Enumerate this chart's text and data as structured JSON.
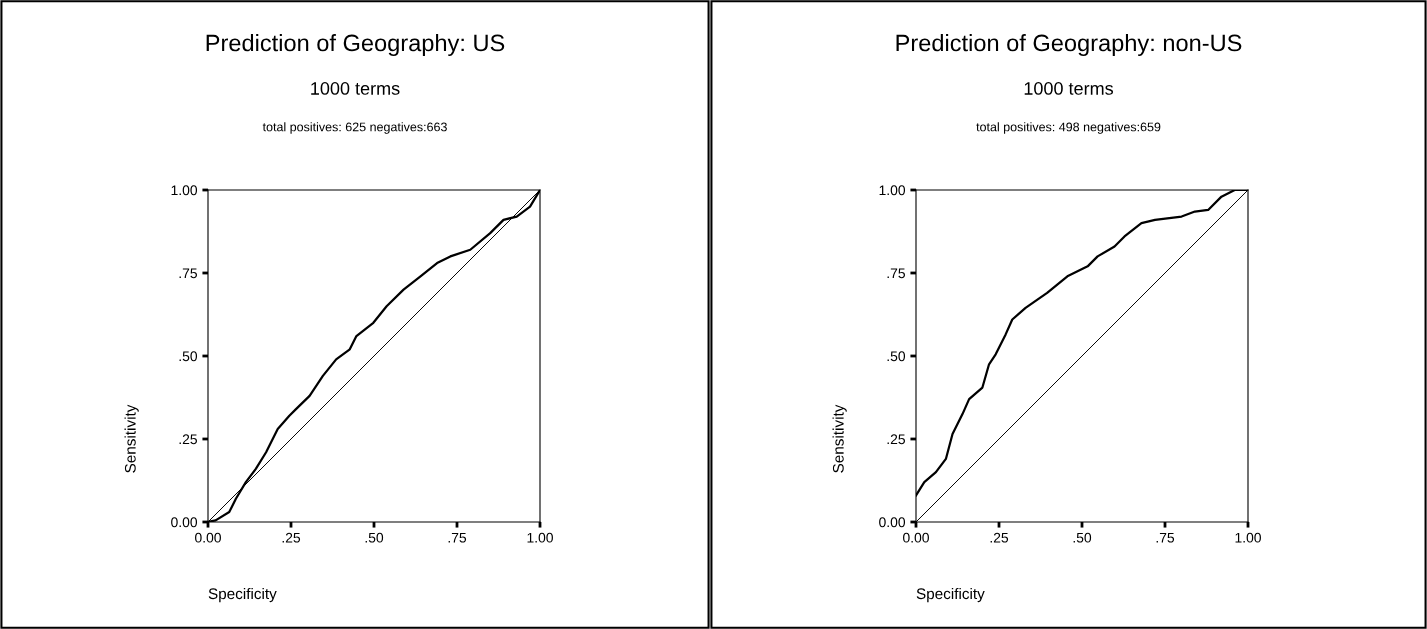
{
  "chart_data": [
    {
      "type": "line",
      "title": "Prediction of Geography: US",
      "subtitle": "1000 terms",
      "annotations": [
        "total positives: 625 negatives:663"
      ],
      "xlabel": "Specificity",
      "ylabel": "Sensitivity",
      "xlim": [
        0,
        1
      ],
      "ylim": [
        0,
        1
      ],
      "xticks": [
        {
          "value": 0,
          "label": "0.00"
        },
        {
          "value": 0.25,
          "label": ".25"
        },
        {
          "value": 0.5,
          "label": ".50"
        },
        {
          "value": 0.75,
          "label": ".75"
        },
        {
          "value": 1,
          "label": "1.00"
        }
      ],
      "yticks": [
        {
          "value": 0,
          "label": "0.00"
        },
        {
          "value": 0.25,
          "label": ".25"
        },
        {
          "value": 0.5,
          "label": ".50"
        },
        {
          "value": 0.75,
          "label": ".75"
        },
        {
          "value": 1,
          "label": "1.00"
        }
      ],
      "grid": false,
      "line_style": "solid",
      "series": [
        {
          "color": "#000000",
          "x": [
            0,
            0.023,
            0.064,
            0.084,
            0.114,
            0.144,
            0.175,
            0.21,
            0.245,
            0.265,
            0.306,
            0.346,
            0.386,
            0.427,
            0.447,
            0.498,
            0.538,
            0.589,
            0.64,
            0.69,
            0.73,
            0.79,
            0.85,
            0.89,
            0.93,
            0.97,
            1
          ],
          "values": [
            0,
            0.005,
            0.03,
            0.07,
            0.12,
            0.16,
            0.21,
            0.28,
            0.32,
            0.34,
            0.38,
            0.44,
            0.49,
            0.52,
            0.56,
            0.6,
            0.65,
            0.7,
            0.74,
            0.78,
            0.8,
            0.82,
            0.87,
            0.91,
            0.92,
            0.95,
            1
          ]
        },
        {
          "color": "#000000",
          "x": [
            0,
            1
          ],
          "values": [
            0,
            1
          ]
        }
      ]
    },
    {
      "type": "line",
      "title": "Prediction of Geography: non-US",
      "subtitle": "1000 terms",
      "annotations": [
        "total positives: 498 negatives:659"
      ],
      "xlabel": "Specificity",
      "ylabel": "Sensitivity",
      "xlim": [
        0,
        1
      ],
      "ylim": [
        0,
        1
      ],
      "xticks": [
        {
          "value": 0,
          "label": "0.00"
        },
        {
          "value": 0.25,
          "label": ".25"
        },
        {
          "value": 0.5,
          "label": ".50"
        },
        {
          "value": 0.75,
          "label": ".75"
        },
        {
          "value": 1,
          "label": "1.00"
        }
      ],
      "yticks": [
        {
          "value": 0,
          "label": "0.00"
        },
        {
          "value": 0.25,
          "label": ".25"
        },
        {
          "value": 0.5,
          "label": ".50"
        },
        {
          "value": 0.75,
          "label": ".75"
        },
        {
          "value": 1,
          "label": "1.00"
        }
      ],
      "grid": false,
      "line_style": "solid",
      "series": [
        {
          "color": "#000000",
          "x": [
            0,
            0.025,
            0.06,
            0.09,
            0.11,
            0.14,
            0.16,
            0.2,
            0.22,
            0.24,
            0.27,
            0.29,
            0.33,
            0.395,
            0.456,
            0.517,
            0.547,
            0.598,
            0.628,
            0.679,
            0.72,
            0.8,
            0.84,
            0.88,
            0.92,
            0.96,
            1
          ],
          "values": [
            0.08,
            0.12,
            0.15,
            0.19,
            0.265,
            0.325,
            0.37,
            0.405,
            0.475,
            0.505,
            0.565,
            0.61,
            0.645,
            0.69,
            0.74,
            0.77,
            0.8,
            0.83,
            0.86,
            0.9,
            0.91,
            0.92,
            0.935,
            0.94,
            0.98,
            1,
            1
          ]
        },
        {
          "color": "#000000",
          "x": [
            0,
            1
          ],
          "values": [
            0,
            1
          ]
        }
      ]
    }
  ]
}
